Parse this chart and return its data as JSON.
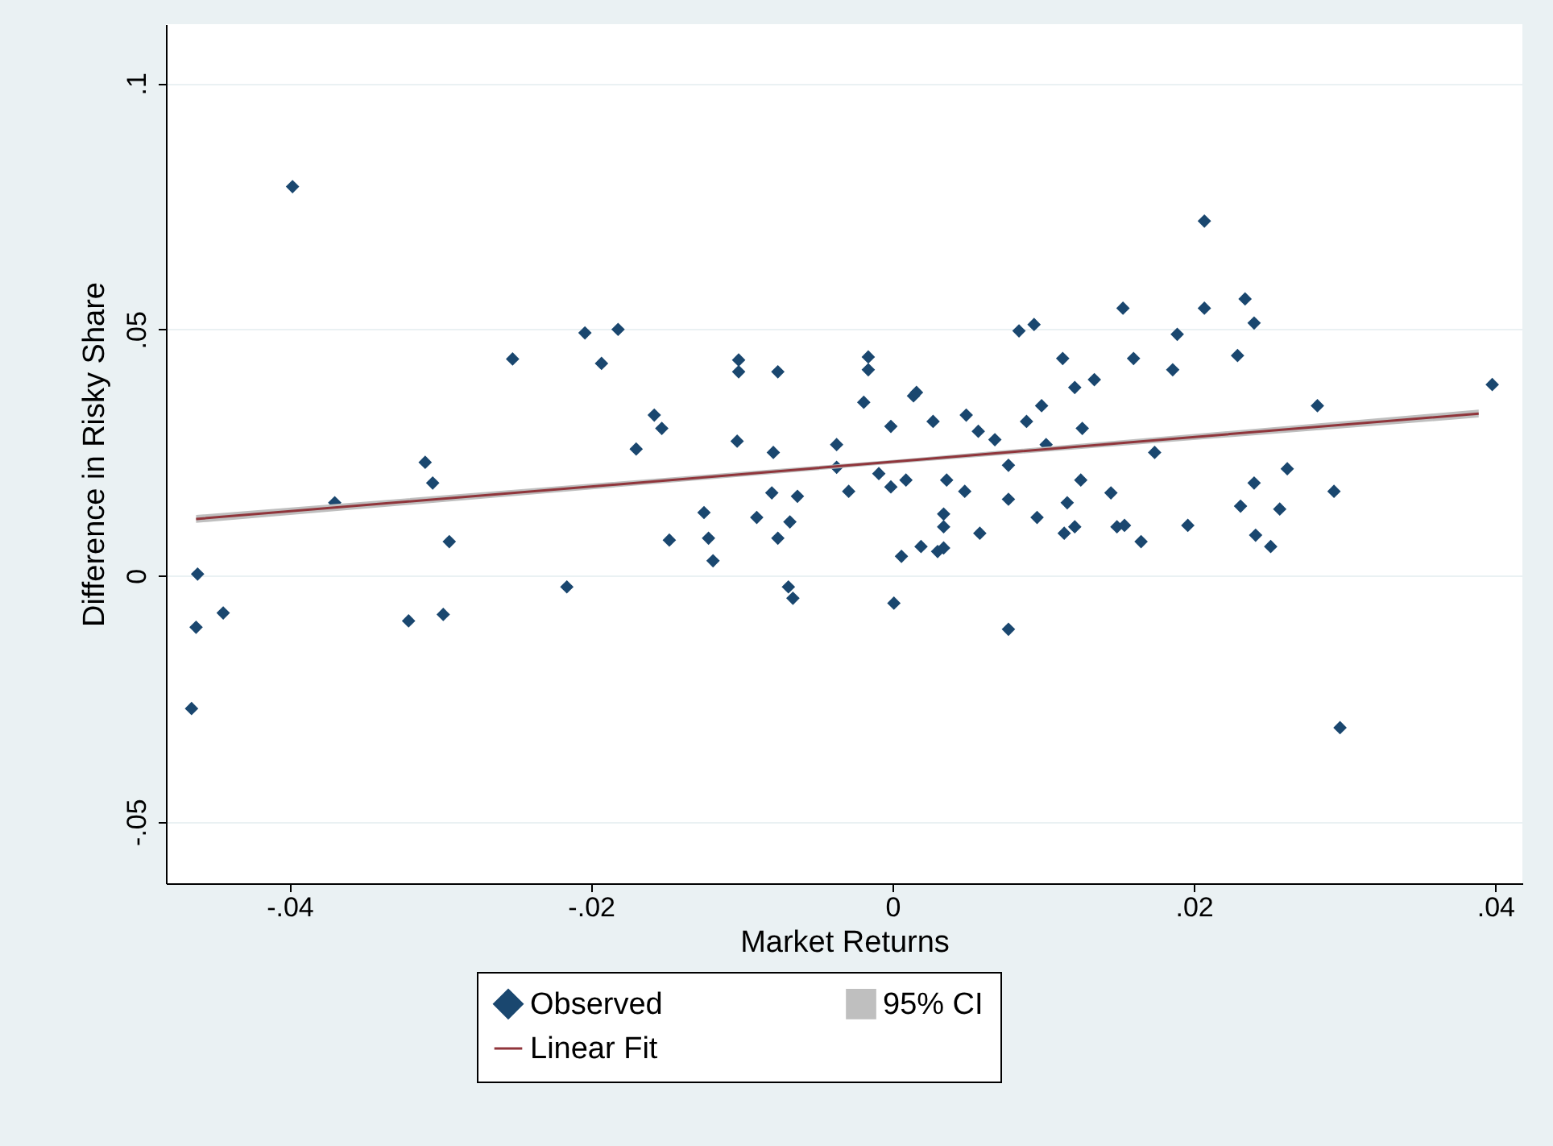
{
  "chart_data": {
    "type": "scatter",
    "xlabel": "Market Returns",
    "ylabel": "Difference in Risky Share",
    "xlim": [
      -0.0482,
      0.0418
    ],
    "ylim": [
      -0.0625,
      0.112
    ],
    "xticks": [
      {
        "value": -0.04,
        "label": "-.04"
      },
      {
        "value": -0.02,
        "label": "-.02"
      },
      {
        "value": 0,
        "label": "0"
      },
      {
        "value": 0.02,
        "label": ".02"
      },
      {
        "value": 0.04,
        "label": ".04"
      }
    ],
    "yticks": [
      {
        "value": -0.05,
        "label": "-.05"
      },
      {
        "value": 0,
        "label": "0"
      },
      {
        "value": 0.05,
        "label": ".05"
      },
      {
        "value": 0.1,
        "label": ".1"
      }
    ],
    "grid": "y",
    "legend": "bottom",
    "series": [
      {
        "name": "Observed",
        "type": "scatter",
        "color": "#1a476f",
        "marker": "diamond",
        "x": [
          -0.0465,
          -0.0462,
          -0.0461,
          -0.0444,
          -0.0398,
          -0.037,
          -0.0321,
          -0.031,
          -0.0305,
          -0.0298,
          -0.0294,
          -0.0252,
          -0.0216,
          -0.0204,
          -0.0193,
          -0.0182,
          -0.017,
          -0.0158,
          -0.0153,
          -0.0148,
          -0.0125,
          -0.0122,
          -0.0119,
          -0.0102,
          -0.0102,
          -0.0103,
          -0.0079,
          -0.0076,
          -0.008,
          -0.009,
          -0.0076,
          -0.0068,
          -0.0063,
          -0.0069,
          -0.0066,
          -0.0037,
          -0.0037,
          -0.0029,
          -0.0019,
          -0.0016,
          -0.0016,
          -0.0009,
          -0.0001,
          -0.0001,
          0.0009,
          0.0001,
          0.0006,
          0.0014,
          0.0016,
          0.0019,
          0.0027,
          0.003,
          0.0034,
          0.0034,
          0.0034,
          0.0036,
          0.0049,
          0.0057,
          0.0048,
          0.0058,
          0.0068,
          0.0077,
          0.0077,
          0.0077,
          0.0084,
          0.0094,
          0.0089,
          0.0096,
          0.0099,
          0.0102,
          0.0113,
          0.0116,
          0.0121,
          0.0114,
          0.0121,
          0.0126,
          0.0125,
          0.0134,
          0.0153,
          0.016,
          0.0145,
          0.0149,
          0.0154,
          0.0165,
          0.0174,
          0.0186,
          0.0189,
          0.0196,
          0.0207,
          0.0207,
          0.0229,
          0.0234,
          0.024,
          0.0231,
          0.024,
          0.0241,
          0.0251,
          0.0257,
          0.0262,
          0.0282,
          0.0293,
          0.0297,
          0.0398
        ],
        "values": [
          -0.027,
          -0.0105,
          0.0003,
          -0.0076,
          0.079,
          0.0148,
          -0.0092,
          0.023,
          0.0188,
          -0.0079,
          0.0069,
          0.044,
          -0.0023,
          0.0493,
          0.0431,
          0.05,
          0.0257,
          0.0326,
          0.0299,
          0.0072,
          0.0128,
          0.0076,
          0.003,
          0.0438,
          0.0414,
          0.0273,
          0.025,
          0.0414,
          0.0168,
          0.0118,
          0.0076,
          0.0109,
          0.0161,
          -0.0023,
          -0.0046,
          0.0266,
          0.022,
          0.0171,
          0.0352,
          0.0444,
          0.0418,
          0.0207,
          0.0303,
          0.018,
          0.0194,
          -0.0056,
          0.0039,
          0.0365,
          0.0372,
          0.0059,
          0.0313,
          0.0049,
          0.0056,
          0.0099,
          0.0125,
          0.0194,
          0.0326,
          0.0293,
          0.0171,
          0.0086,
          0.0276,
          0.0224,
          0.0155,
          -0.0109,
          0.0497,
          0.051,
          0.0313,
          0.0118,
          0.0345,
          0.0266,
          0.0441,
          0.0148,
          0.0382,
          0.0086,
          0.0099,
          0.0299,
          0.0194,
          0.0398,
          0.0543,
          0.0441,
          0.0168,
          0.0099,
          0.0102,
          0.0069,
          0.025,
          0.0418,
          0.049,
          0.0102,
          0.072,
          0.0543,
          0.0447,
          0.0562,
          0.0513,
          0.0141,
          0.0188,
          0.0082,
          0.0059,
          0.0135,
          0.0217,
          0.0345,
          0.0171,
          -0.0309,
          0.0388
        ]
      },
      {
        "name": "95% CI",
        "type": "area",
        "color": "#bfbfbf"
      },
      {
        "name": "Linear Fit",
        "type": "line",
        "color": "#90353b",
        "x": [
          -0.0462,
          0,
          0.0389
        ],
        "values": [
          0.0115,
          0.0231,
          0.0329
        ],
        "lower": [
          0.0107,
          0.0227,
          0.0321
        ],
        "upper": [
          0.0123,
          0.0235,
          0.0337
        ]
      }
    ]
  }
}
